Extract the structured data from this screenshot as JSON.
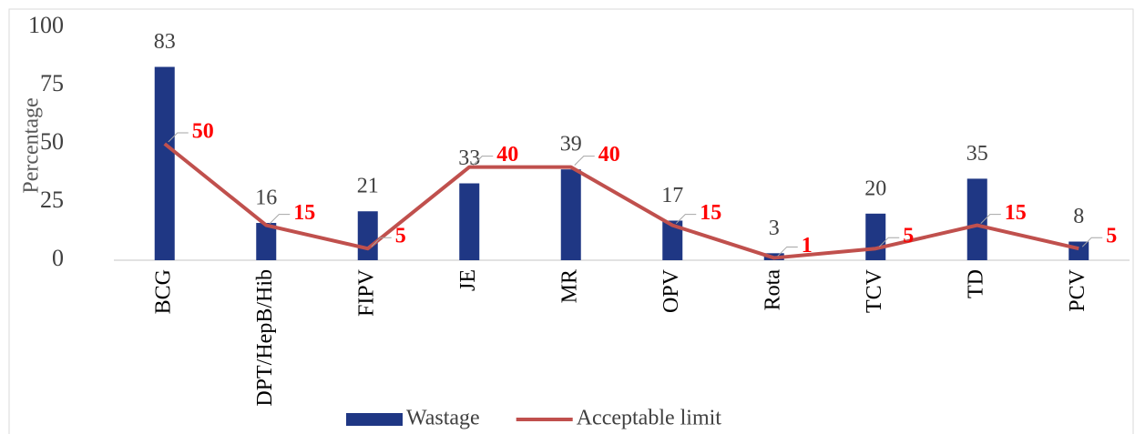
{
  "chart_data": {
    "type": "bar",
    "y_axis_label": "Percentage",
    "categories": [
      "BCG",
      "DPT/HepB/Hib",
      "FIPV",
      "JE",
      "MR",
      "OPV",
      "Rota",
      "TCV",
      "TD",
      "PCV"
    ],
    "series": [
      {
        "name": "Wastage",
        "type": "bar",
        "color": "#1f3784",
        "values": [
          83,
          16,
          21,
          33,
          39,
          17,
          3,
          20,
          35,
          8
        ]
      },
      {
        "name": "Acceptable limit",
        "type": "line",
        "color": "#c0504d",
        "values": [
          50,
          15,
          5,
          40,
          40,
          15,
          1,
          5,
          15,
          5
        ]
      }
    ],
    "ylim": [
      0,
      100
    ],
    "yticks": [
      0,
      25,
      50,
      75,
      100
    ],
    "grid": false,
    "legend": "bottom"
  }
}
